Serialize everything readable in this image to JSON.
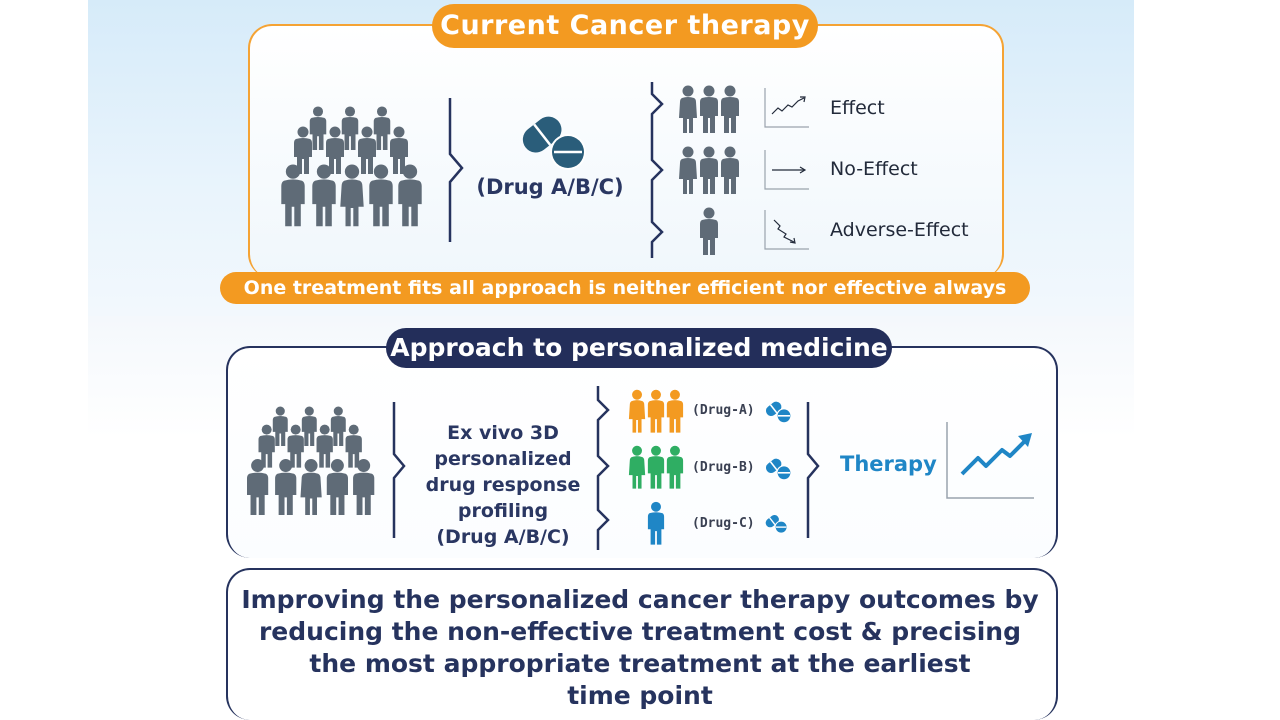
{
  "top": {
    "title": "Current Cancer therapy",
    "drug_label": "(Drug A/B/C)",
    "outcomes": [
      "Effect",
      "No-Effect",
      "Adverse-Effect"
    ],
    "banner": "One treatment fits all approach  is neither efficient nor effective always"
  },
  "middle": {
    "title": "Approach to personalized medicine",
    "profiling_lines": [
      "Ex vivo 3D",
      "personalized",
      "drug response",
      "profiling",
      "(Drug A/B/C)"
    ],
    "drugs": [
      "(Drug-A)",
      "(Drug-B)",
      "(Drug-C)"
    ],
    "therapy_label": "Therapy"
  },
  "bottom": {
    "conclusion_lines": [
      "Improving the personalized cancer therapy outcomes by",
      "reducing the non-effective treatment cost & precising",
      "the most appropriate treatment at the earliest",
      "time point"
    ]
  },
  "colors": {
    "orange": "#f39a21",
    "navy": "#232e5a",
    "gray_person": "#5f6b77",
    "drug_a": "#f39a21",
    "drug_b": "#2fae63",
    "drug_c": "#1f86c6",
    "pill": "#2a5d7a",
    "pill_small": "#1f86c6"
  }
}
